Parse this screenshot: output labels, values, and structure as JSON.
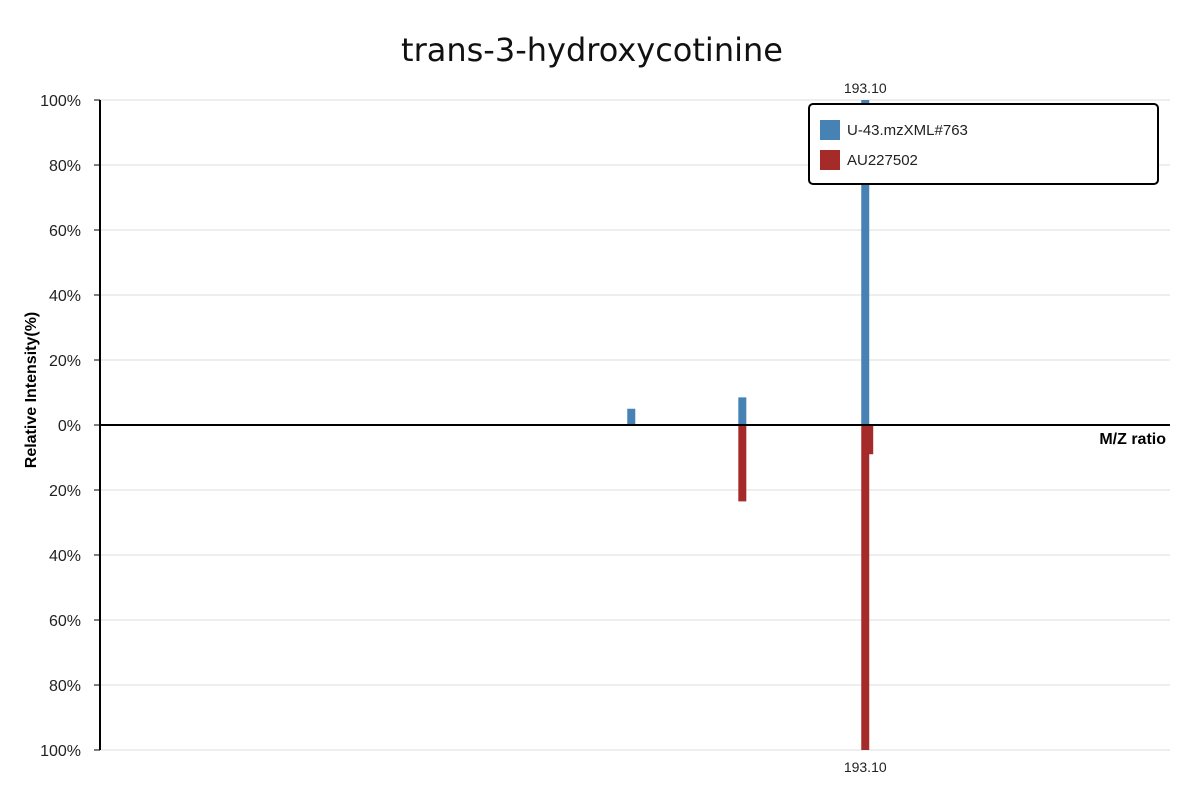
{
  "chart_data": {
    "type": "bar",
    "title": "trans-3-hydroxycotinine",
    "xlabel": "M/Z ratio",
    "ylabel": "Relative Intensity(%)",
    "ylim": [
      -100,
      100
    ],
    "y_ticks": [
      100,
      80,
      60,
      40,
      20,
      0,
      -20,
      -40,
      -60,
      -80,
      -100
    ],
    "y_tick_labels": [
      "100%",
      "80%",
      "60%",
      "40%",
      "20%",
      "0%",
      "20%",
      "40%",
      "60%",
      "80%",
      "100%"
    ],
    "grid": true,
    "legend_position": "top-right",
    "series": [
      {
        "name": "U-43.mzXML#763",
        "color": "#4682b4",
        "direction": "up",
        "points": [
          {
            "mz": 134.06,
            "intensity": 5
          },
          {
            "mz": 162.08,
            "intensity": 8.5
          },
          {
            "mz": 193.1,
            "intensity": 100,
            "label": "193.10"
          }
        ]
      },
      {
        "name": "AU227502",
        "color": "#a52a2a",
        "direction": "down",
        "points": [
          {
            "mz": 162.08,
            "intensity": 23.5
          },
          {
            "mz": 193.1,
            "intensity": 100,
            "label": "193.10"
          },
          {
            "mz": 194.1,
            "intensity": 9
          }
        ]
      }
    ]
  }
}
